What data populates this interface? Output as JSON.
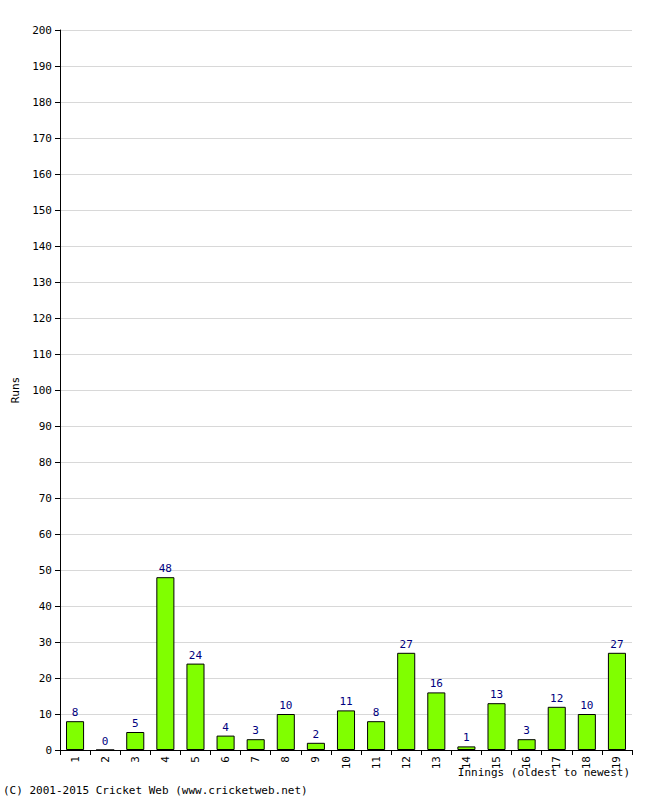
{
  "chart_data": {
    "type": "bar",
    "xlabel": "Innings (oldest to newest)",
    "ylabel": "Runs",
    "annotations": [
      "(C) 2001-2015 Cricket Web (www.cricketweb.net)"
    ],
    "categories": [
      "1",
      "2",
      "3",
      "4",
      "5",
      "6",
      "7",
      "8",
      "9",
      "10",
      "11",
      "12",
      "13",
      "14",
      "15",
      "16",
      "17",
      "18",
      "19"
    ],
    "values": [
      8,
      0,
      5,
      48,
      24,
      4,
      3,
      10,
      2,
      11,
      8,
      27,
      16,
      1,
      13,
      3,
      12,
      10,
      27
    ],
    "color": "#80ff00",
    "ylim": [
      0,
      200
    ],
    "yticks": [
      0,
      10,
      20,
      30,
      40,
      50,
      60,
      70,
      80,
      90,
      100,
      110,
      120,
      130,
      140,
      150,
      160,
      170,
      180,
      190,
      200
    ],
    "grid": true,
    "data_labels": true
  }
}
